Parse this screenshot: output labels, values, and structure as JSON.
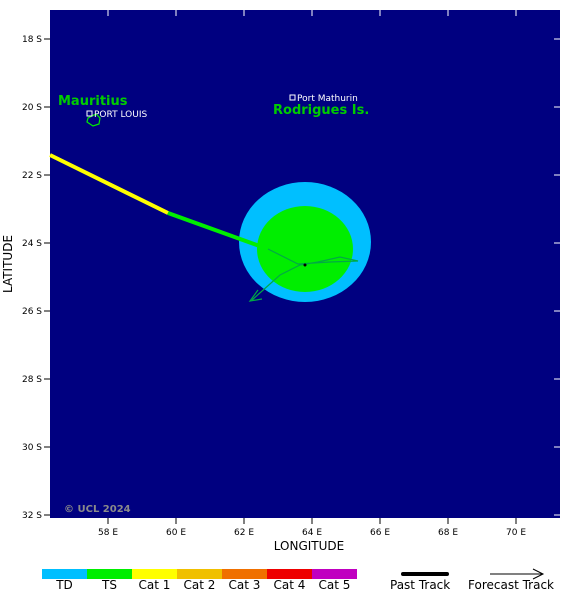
{
  "map": {
    "ocean_color": "#000080",
    "lat_ticks": [
      "18 S",
      "20 S",
      "22 S",
      "24 S",
      "26 S",
      "28 S",
      "30 S",
      "32 S"
    ],
    "lon_ticks": [
      "58 E",
      "60 E",
      "62 E",
      "64 E",
      "66 E",
      "68 E",
      "70 E"
    ],
    "ylabel": "LATITUDE",
    "xlabel": "LONGITUDE",
    "copyright": "© UCL 2024",
    "places": {
      "mauritius": "Mauritius",
      "port_louis": "PORT LOUIS",
      "rodrigues": "Rodrigues Is.",
      "port_mathurin": "Port Mathurin"
    },
    "wind_field": {
      "outer_color": "#00bfff",
      "inner_color": "#00ee00"
    }
  },
  "legend": {
    "categories": [
      {
        "label": "TD",
        "color": "#00bfff"
      },
      {
        "label": "TS",
        "color": "#00ee00"
      },
      {
        "label": "Cat 1",
        "color": "#ffff00"
      },
      {
        "label": "Cat 2",
        "color": "#f0c000"
      },
      {
        "label": "Cat 3",
        "color": "#f07000"
      },
      {
        "label": "Cat 4",
        "color": "#ee0000"
      },
      {
        "label": "Cat 5",
        "color": "#c000c0"
      }
    ],
    "past_track": "Past Track",
    "forecast_track": "Forecast Track"
  }
}
